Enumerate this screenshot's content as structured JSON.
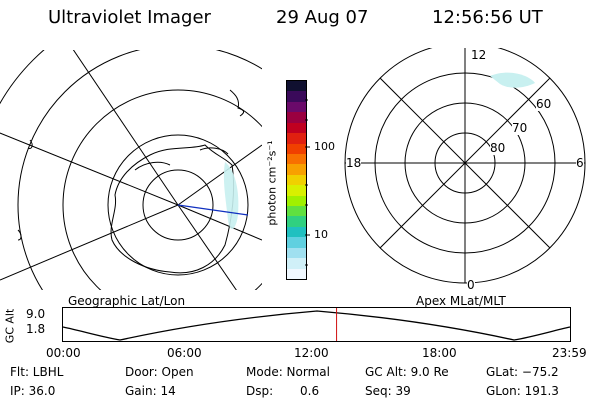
{
  "header": {
    "instrument": "Ultraviolet Imager",
    "date": "29 Aug 07",
    "time": "12:56:56 UT"
  },
  "colorbar": {
    "label": "photon cm⁻²s⁻¹",
    "ticks": [
      "100",
      "10"
    ],
    "colors": [
      "#101030",
      "#3a0a5a",
      "#6a0a6a",
      "#9a0040",
      "#c00020",
      "#e02010",
      "#f04000",
      "#f87000",
      "#f8a000",
      "#f0d000",
      "#d8f000",
      "#a0f000",
      "#60e040",
      "#30d080",
      "#20c0c0",
      "#60d0e0",
      "#a0e0f0",
      "#d0f0f8",
      "#f0f8ff"
    ]
  },
  "left_panel": {
    "label": "Geographic Lat/Lon"
  },
  "right_panel": {
    "label": "Apex MLat/MLT",
    "lat_labels": [
      "60",
      "70",
      "80"
    ],
    "mlt_labels": {
      "top": "12",
      "left": "18",
      "right": "6",
      "bottom": "0"
    }
  },
  "altitude_plot": {
    "ylabel": "GC Alt",
    "yticks": [
      "9.0",
      "1.8"
    ],
    "xticks": [
      "00:00",
      "06:00",
      "12:00",
      "18:00",
      "23:59"
    ],
    "current_time_marker_hours": 12.95
  },
  "params": {
    "filter": "Flt: LBHL",
    "ip": "IP: 36.0",
    "door": "Door: Open",
    "gain": "Gain: 14",
    "mode": "Mode: Normal",
    "dsp_label": "Dsp:",
    "dsp_value": "0.6",
    "gc_alt": "GC Alt: 9.0 Re",
    "seq": "Seq: 39",
    "glat": "GLat: −75.2",
    "glon": "GLon: 191.3"
  }
}
